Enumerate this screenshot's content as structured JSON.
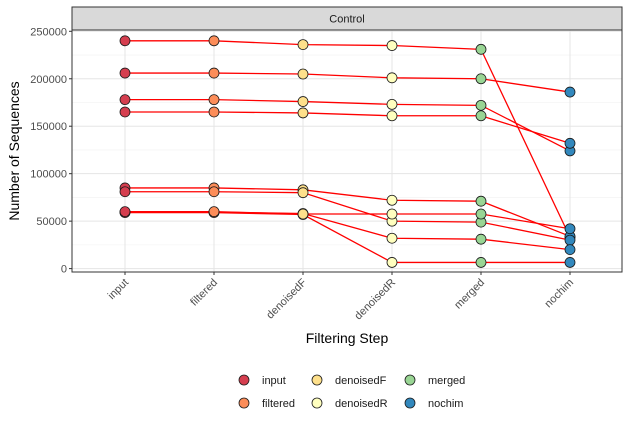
{
  "chart_data": {
    "type": "line",
    "panel_title": "Control",
    "xlabel": "Filtering Step",
    "ylabel": "Number of Sequences",
    "categories": [
      "input",
      "filtered",
      "denoisedF",
      "denoisedR",
      "merged",
      "nochim"
    ],
    "ylim": [
      0,
      250000
    ],
    "yticks": [
      0,
      50000,
      100000,
      150000,
      200000,
      250000
    ],
    "ytick_labels": [
      "0",
      "50000",
      "100000",
      "150000",
      "200000",
      "250000"
    ],
    "grid": true,
    "legend_position": "bottom",
    "legend": [
      {
        "label": "input",
        "color": "#d53e4f"
      },
      {
        "label": "filtered",
        "color": "#fc8d59"
      },
      {
        "label": "denoisedF",
        "color": "#fee08b"
      },
      {
        "label": "denoisedR",
        "color": "#ffffbf"
      },
      {
        "label": "merged",
        "color": "#99d594"
      },
      {
        "label": "nochim",
        "color": "#3288bd"
      }
    ],
    "line_color": "#ff0000",
    "series": [
      {
        "values": [
          240000,
          240000,
          236000,
          235000,
          231000,
          33000
        ]
      },
      {
        "values": [
          206000,
          206000,
          205000,
          201000,
          200000,
          186000
        ]
      },
      {
        "values": [
          178000,
          178000,
          176000,
          173000,
          172000,
          124000
        ]
      },
      {
        "values": [
          165000,
          165000,
          164000,
          161000,
          161000,
          132000
        ]
      },
      {
        "values": [
          85000,
          85000,
          83000,
          72000,
          71000,
          34000
        ]
      },
      {
        "values": [
          81000,
          81000,
          80000,
          50000,
          49000,
          30000
        ]
      },
      {
        "values": [
          59500,
          59500,
          58000,
          32000,
          31000,
          20000
        ]
      },
      {
        "values": [
          59000,
          59000,
          57000,
          6500,
          6500,
          6500
        ]
      },
      {
        "values": [
          60000,
          60000,
          57500,
          57500,
          57500,
          42000
        ]
      }
    ]
  }
}
